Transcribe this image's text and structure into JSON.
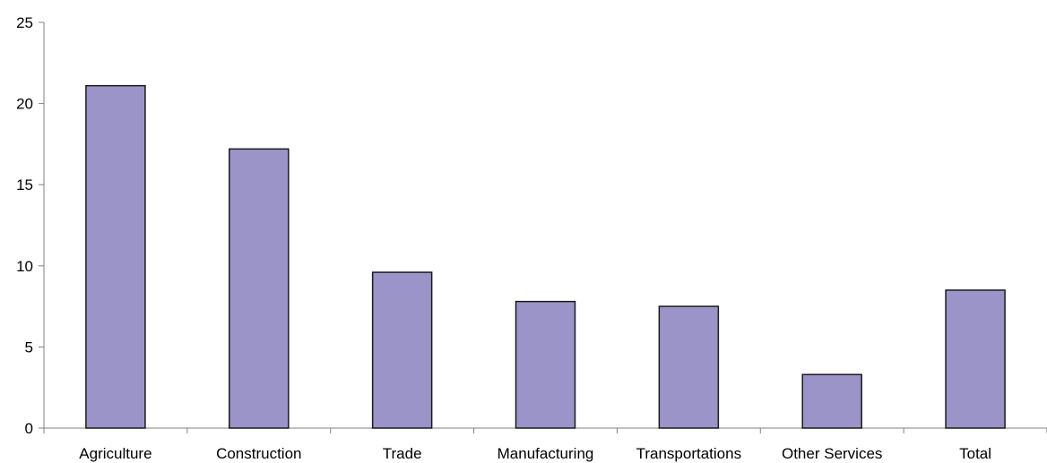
{
  "chart_data": {
    "type": "bar",
    "title": "",
    "xlabel": "",
    "ylabel": "",
    "categories": [
      "Agriculture",
      "Construction",
      "Trade",
      "Manufacturing",
      "Transportations",
      "Other Services",
      "Total"
    ],
    "values": [
      21.1,
      17.2,
      9.6,
      7.8,
      7.5,
      3.3,
      8.5
    ],
    "ylim": [
      0,
      25
    ],
    "yticks": [
      "0",
      "5",
      "10",
      "15",
      "20",
      "25"
    ],
    "grid": false,
    "legend": "none",
    "colors": {
      "bar_fill": "#9b94c8",
      "bar_stroke": "#1a1a1a",
      "axis": "#808080"
    }
  }
}
